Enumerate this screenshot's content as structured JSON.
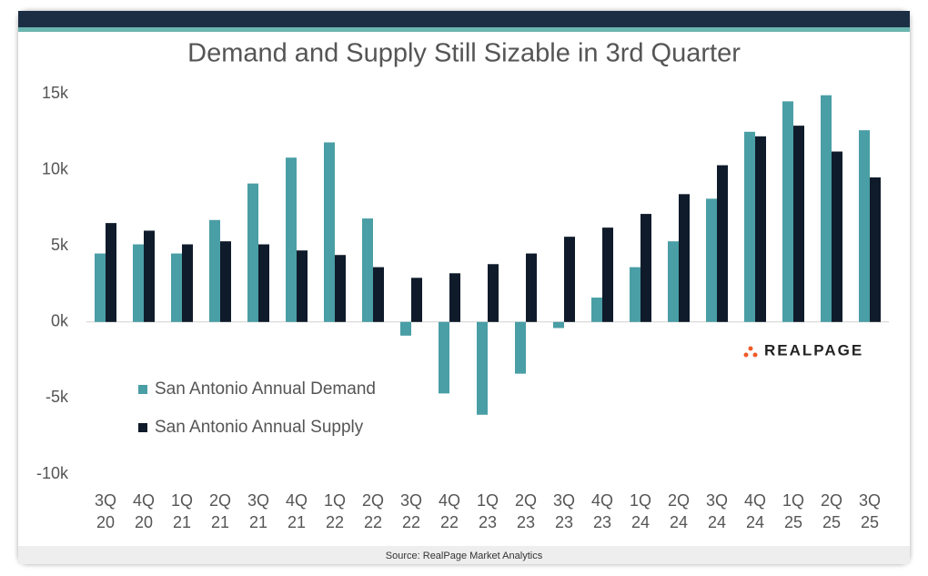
{
  "chart_data": {
    "type": "bar",
    "title": "Demand and Supply Still Sizable in 3rd Quarter",
    "categories": [
      "3Q 20",
      "4Q 20",
      "1Q 21",
      "2Q 21",
      "3Q 21",
      "4Q 21",
      "1Q 22",
      "2Q 22",
      "3Q 22",
      "4Q 22",
      "1Q 23",
      "2Q 23",
      "3Q 23",
      "4Q 23",
      "1Q 24",
      "2Q 24",
      "3Q 24",
      "4Q 24",
      "1Q 25",
      "2Q 25",
      "3Q 25"
    ],
    "series": [
      {
        "name": "San Antonio Annual Demand",
        "color": "#4a9ea5",
        "values": [
          4500,
          5100,
          4500,
          6700,
          9100,
          10800,
          11800,
          6800,
          -900,
          -4700,
          -6100,
          -3400,
          -400,
          1600,
          3600,
          5300,
          8100,
          12500,
          14500,
          14900,
          12600
        ]
      },
      {
        "name": "San Antonio Annual Supply",
        "color": "#0f1b2a",
        "values": [
          6500,
          6000,
          5100,
          5300,
          5100,
          4700,
          4400,
          3600,
          2900,
          3200,
          3800,
          4500,
          5600,
          6200,
          7100,
          8400,
          10300,
          12200,
          12900,
          11200,
          9500
        ]
      }
    ],
    "ylim": [
      -10000,
      15000
    ],
    "yticks": [
      {
        "value": -10000,
        "label": "-10k"
      },
      {
        "value": -5000,
        "label": "-5k"
      },
      {
        "value": 0,
        "label": "0k"
      },
      {
        "value": 5000,
        "label": "5k"
      },
      {
        "value": 10000,
        "label": "10k"
      },
      {
        "value": 15000,
        "label": "15k"
      }
    ],
    "grid": false,
    "legend": "lower left",
    "logo": "REALPAGE",
    "source": "Source: RealPage Market Analytics"
  }
}
